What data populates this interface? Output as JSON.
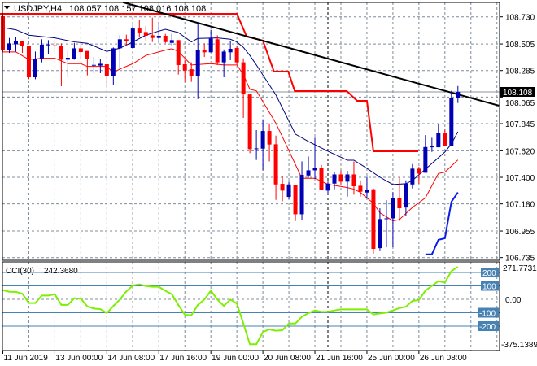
{
  "header": {
    "symbol_label": "USDJPY,H4",
    "ohlc_label": "108.057 108.157 108.016 108.108",
    "menu_icon": "triangle-down-icon"
  },
  "colors": {
    "background": "#ffffff",
    "grid": "#7f8c99",
    "bull_candle": "#0000b4",
    "bear_candle": "#ff0000",
    "ma_fast": "#00007f",
    "ma_slow": "#ff0000",
    "channel_upper": "#ff0000",
    "channel_lower": "#0a1ee6",
    "trendline": "#000000",
    "cci_line": "#7cf000",
    "cci_levels": "#4682b4",
    "price_line": "#8c96a0"
  },
  "chart_data": [
    {
      "type": "candlestick",
      "title": "USDJPY,H4",
      "timeframe": "H4",
      "last_price": 108.108,
      "price_axis": {
        "ylim": [
          106.735,
          108.73
        ],
        "tick_labels": [
          "108.730",
          "108.505",
          "108.285",
          "108.065",
          "107.845",
          "107.620",
          "107.400",
          "107.180",
          "106.955",
          "106.735"
        ],
        "current_price_label": "108.108"
      },
      "time_axis": {
        "tick_labels": [
          "11 Jun 2019",
          "13 Jun 00:00",
          "14 Jun 08:00",
          "17 Jun 16:00",
          "19 Jun 00:00",
          "20 Jun 08:00",
          "21 Jun 16:00",
          "25 Jun 00:00",
          "26 Jun 08:00"
        ],
        "tick_bars": [
          0,
          8,
          16,
          24,
          32,
          40,
          48,
          56,
          64
        ]
      },
      "grid": true,
      "period_separators_bars": [
        20,
        50
      ],
      "candles": [
        [
          108.735,
          108.757,
          108.442,
          108.454
        ],
        [
          108.454,
          108.555,
          108.431,
          108.51
        ],
        [
          108.503,
          108.566,
          108.442,
          108.526
        ],
        [
          108.526,
          108.526,
          108.431,
          108.487
        ],
        [
          108.492,
          108.492,
          108.213,
          108.229
        ],
        [
          108.229,
          108.442,
          108.213,
          108.384
        ],
        [
          108.386,
          108.544,
          108.353,
          108.499
        ],
        [
          108.497,
          108.537,
          108.42,
          108.501
        ],
        [
          108.494,
          108.537,
          108.442,
          108.49
        ],
        [
          108.492,
          108.51,
          108.155,
          108.375
        ],
        [
          108.375,
          108.454,
          108.229,
          108.391
        ],
        [
          108.384,
          108.514,
          108.375,
          108.469
        ],
        [
          108.469,
          108.514,
          108.375,
          108.438
        ],
        [
          108.447,
          108.447,
          108.245,
          108.384
        ],
        [
          108.328,
          108.398,
          108.263,
          108.332
        ],
        [
          108.326,
          108.38,
          108.263,
          108.341
        ],
        [
          108.337,
          108.337,
          108.15,
          108.24
        ],
        [
          108.24,
          108.476,
          108.162,
          108.469
        ],
        [
          108.469,
          108.577,
          108.296,
          108.544
        ],
        [
          108.544,
          108.582,
          108.492,
          108.528
        ],
        [
          108.472,
          108.667,
          108.465,
          108.633
        ],
        [
          108.633,
          108.708,
          108.566,
          108.6
        ],
        [
          108.604,
          108.656,
          108.532,
          108.573
        ],
        [
          108.577,
          108.723,
          108.521,
          108.555
        ],
        [
          108.555,
          108.69,
          108.514,
          108.573
        ],
        [
          108.573,
          108.589,
          108.51,
          108.521
        ],
        [
          108.514,
          108.589,
          108.487,
          108.537
        ],
        [
          108.537,
          108.537,
          108.252,
          108.33
        ],
        [
          108.337,
          108.375,
          108.191,
          108.285
        ],
        [
          108.296,
          108.353,
          108.191,
          108.24
        ],
        [
          108.24,
          108.678,
          108.049,
          108.454
        ],
        [
          108.454,
          108.51,
          108.398,
          108.436
        ],
        [
          108.436,
          108.622,
          108.436,
          108.55
        ],
        [
          108.544,
          108.577,
          108.33,
          108.353
        ],
        [
          108.353,
          108.46,
          108.229,
          108.442
        ],
        [
          108.436,
          108.532,
          108.371,
          108.465
        ],
        [
          108.472,
          108.487,
          108.33,
          108.353
        ],
        [
          108.353,
          108.386,
          107.892,
          108.087
        ],
        [
          108.087,
          108.087,
          107.6,
          107.634
        ],
        [
          107.636,
          107.791,
          107.544,
          107.64
        ],
        [
          107.638,
          107.881,
          107.458,
          107.784
        ],
        [
          107.784,
          107.847,
          107.532,
          107.672
        ],
        [
          107.674,
          107.746,
          107.213,
          107.341
        ],
        [
          107.346,
          107.409,
          107.202,
          107.29
        ],
        [
          107.238,
          107.364,
          107.218,
          107.341
        ],
        [
          107.339,
          107.339,
          107.038,
          107.094
        ],
        [
          107.094,
          107.532,
          107.049,
          107.42
        ],
        [
          107.415,
          107.573,
          107.397,
          107.458
        ],
        [
          107.458,
          107.728,
          107.386,
          107.481
        ],
        [
          107.481,
          107.503,
          107.296,
          107.296
        ],
        [
          107.29,
          107.364,
          107.256,
          107.348
        ],
        [
          107.348,
          107.442,
          107.301,
          107.424
        ],
        [
          107.424,
          107.458,
          107.341,
          107.364
        ],
        [
          107.364,
          107.454,
          107.24,
          107.424
        ],
        [
          107.424,
          107.532,
          107.256,
          107.326
        ],
        [
          107.33,
          107.375,
          107.24,
          107.281
        ],
        [
          107.274,
          107.404,
          107.229,
          107.296
        ],
        [
          107.301,
          107.308,
          106.768,
          106.807
        ],
        [
          106.813,
          107.144,
          106.795,
          107.054
        ],
        [
          107.056,
          107.211,
          106.82,
          107.06
        ],
        [
          107.06,
          107.278,
          106.82,
          107.229
        ],
        [
          107.229,
          107.397,
          107.038,
          107.144
        ],
        [
          107.15,
          107.375,
          107.083,
          107.348
        ],
        [
          107.341,
          107.51,
          107.308,
          107.472
        ],
        [
          107.472,
          107.487,
          107.346,
          107.431
        ],
        [
          107.438,
          107.75,
          107.438,
          107.651
        ],
        [
          107.649,
          107.728,
          107.611,
          107.663
        ],
        [
          107.649,
          107.84,
          107.649,
          107.768
        ],
        [
          107.764,
          107.795,
          107.661,
          107.663
        ],
        [
          107.663,
          108.117,
          107.656,
          108.06
        ],
        [
          108.057,
          108.157,
          108.016,
          108.108
        ]
      ],
      "candle_fields": [
        "open",
        "high",
        "low",
        "close"
      ],
      "overlays": {
        "ma_fast": [
          [
            0,
            108.641
          ],
          [
            2,
            108.623
          ],
          [
            4,
            108.578
          ],
          [
            8,
            108.555
          ],
          [
            11,
            108.522
          ],
          [
            13,
            108.511
          ],
          [
            15,
            108.466
          ],
          [
            16,
            108.443
          ],
          [
            18,
            108.47
          ],
          [
            20,
            108.522
          ],
          [
            22,
            108.578
          ],
          [
            24,
            108.612
          ],
          [
            25,
            108.627
          ],
          [
            27,
            108.6
          ],
          [
            29,
            108.522
          ],
          [
            30,
            108.551
          ],
          [
            33,
            108.555
          ],
          [
            35,
            108.544
          ],
          [
            36,
            108.522
          ],
          [
            37,
            108.477
          ],
          [
            38,
            108.41
          ],
          [
            39,
            108.331
          ],
          [
            42,
            108.083
          ],
          [
            45,
            107.758
          ],
          [
            47,
            107.697
          ],
          [
            50,
            107.616
          ],
          [
            53,
            107.542
          ],
          [
            54,
            107.542
          ],
          [
            56,
            107.475
          ],
          [
            58,
            107.401
          ],
          [
            60,
            107.34
          ],
          [
            62,
            107.347
          ],
          [
            63,
            107.374
          ],
          [
            65,
            107.468
          ],
          [
            68,
            107.61
          ],
          [
            69,
            107.677
          ],
          [
            70,
            107.778
          ]
        ],
        "ma_slow": [
          [
            0,
            108.439
          ],
          [
            2,
            108.439
          ],
          [
            4,
            108.376
          ],
          [
            6,
            108.387
          ],
          [
            8,
            108.387
          ],
          [
            10,
            108.342
          ],
          [
            12,
            108.342
          ],
          [
            13,
            108.319
          ],
          [
            16,
            108.319
          ],
          [
            17,
            108.268
          ],
          [
            18,
            108.297
          ],
          [
            20,
            108.342
          ],
          [
            22,
            108.41
          ],
          [
            25,
            108.454
          ],
          [
            26,
            108.466
          ],
          [
            27,
            108.443
          ],
          [
            28,
            108.387
          ],
          [
            29,
            108.331
          ],
          [
            32,
            108.342
          ],
          [
            34,
            108.331
          ],
          [
            36,
            108.331
          ],
          [
            37,
            108.25
          ],
          [
            38,
            108.129
          ],
          [
            39,
            108.117
          ],
          [
            42,
            107.848
          ],
          [
            43,
            107.736
          ],
          [
            46,
            107.392
          ],
          [
            48,
            107.392
          ],
          [
            50,
            107.342
          ],
          [
            53,
            107.315
          ],
          [
            54,
            107.302
          ],
          [
            55,
            107.275
          ],
          [
            57,
            107.185
          ],
          [
            58,
            107.106
          ],
          [
            60,
            107.039
          ],
          [
            61,
            107.05
          ],
          [
            63,
            107.151
          ],
          [
            65,
            107.23
          ],
          [
            67,
            107.432
          ],
          [
            68,
            107.443
          ],
          [
            70,
            107.544
          ]
        ],
        "channel_upper": [
          [
            -0.5,
            108.755
          ],
          [
            36,
            108.755
          ],
          [
            37.5,
            108.567
          ],
          [
            40,
            108.533
          ],
          [
            41.7,
            108.277
          ],
          [
            43.9,
            108.277
          ],
          [
            44.9,
            108.115
          ],
          [
            52.9,
            108.115
          ],
          [
            54.5,
            108.034
          ],
          [
            56,
            108.034
          ],
          [
            57,
            107.616
          ],
          [
            63.9,
            107.616
          ]
        ],
        "channel_lower": [
          [
            65,
            106.762
          ],
          [
            66,
            106.762
          ],
          [
            67,
            106.882
          ],
          [
            68,
            106.895
          ],
          [
            69,
            107.198
          ],
          [
            70,
            107.275
          ]
        ],
        "trendline": [
          [
            18.5,
            108.85
          ],
          [
            76.3,
            107.994
          ]
        ]
      }
    },
    {
      "type": "line",
      "title": "CCI(30)",
      "value_label": "242.3680",
      "ylim": [
        -375.1389,
        271.7731
      ],
      "max_label": "271.7731",
      "min_label": "-375.1389",
      "levels": [
        200,
        100,
        -100,
        -200
      ],
      "level_labels": [
        "200",
        "100",
        "-100",
        "-200"
      ],
      "zero_label": "0.00",
      "values": [
        69,
        56,
        55,
        42,
        -28,
        -28,
        28,
        28,
        38,
        -42,
        -42,
        8,
        4,
        -53,
        -69,
        -73,
        -103,
        -50,
        -2,
        59,
        103,
        111,
        99,
        93,
        93,
        63,
        38,
        -42,
        -115,
        -119,
        -42,
        -2,
        65,
        -2,
        -49,
        -2,
        -32,
        -180,
        -335,
        -335,
        -244,
        -224,
        -234,
        -230,
        -180,
        -180,
        -130,
        -103,
        -83,
        -93,
        -93,
        -83,
        -75,
        -75,
        -75,
        -75,
        -75,
        -113,
        -105,
        -99,
        -83,
        -65,
        -55,
        -12,
        -6,
        65,
        100,
        135,
        125,
        210,
        242
      ]
    }
  ]
}
